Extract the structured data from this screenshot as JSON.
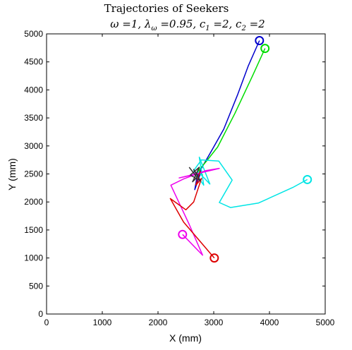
{
  "chart_data": {
    "type": "line",
    "title": "Trajectories of Seekers",
    "subtitle": "ω =1, λ_ω =0.95, c_1 =2, c_2 =2",
    "subtitle_parts": [
      "ω =1, λ",
      "ω",
      " =0.95, c",
      "1",
      " =2, c",
      "2",
      " =2"
    ],
    "xlabel": "X (mm)",
    "ylabel": "Y (mm)",
    "xlim": [
      0,
      5000
    ],
    "ylim": [
      0,
      5000
    ],
    "xticks": [
      "0",
      "1000",
      "2000",
      "3000",
      "4000",
      "5000"
    ],
    "xtick_values": [
      0,
      1000,
      2000,
      3000,
      4000,
      5000
    ],
    "yticks": [
      "0",
      "500",
      "1000",
      "1500",
      "2000",
      "2500",
      "3000",
      "3500",
      "4000",
      "4500",
      "5000"
    ],
    "ytick_values": [
      0,
      500,
      1000,
      1500,
      2000,
      2500,
      3000,
      3500,
      4000,
      4500,
      5000
    ],
    "grid": false,
    "legend": "none",
    "series": [
      {
        "color": "#0000cc",
        "start_marker": "circle",
        "x": [
          3820,
          3620,
          3430,
          3180,
          2960,
          2790,
          2700,
          2660,
          2780,
          2720
        ],
        "y": [
          4880,
          4430,
          3920,
          3300,
          2910,
          2620,
          2450,
          2220,
          2560,
          2500
        ]
      },
      {
        "color": "#00dd00",
        "start_marker": "circle",
        "x": [
          3920,
          3700,
          3380,
          3070,
          2880,
          2760,
          2700,
          2800,
          2740
        ],
        "y": [
          4740,
          4260,
          3580,
          2980,
          2740,
          2600,
          2520,
          2480,
          2560
        ]
      },
      {
        "color": "#00e5e5",
        "start_marker": "circle",
        "x": [
          4680,
          4420,
          3800,
          3300,
          3100,
          3330,
          3090,
          2780,
          2640,
          2820,
          2740,
          2930,
          2700
        ],
        "y": [
          2400,
          2260,
          1980,
          1900,
          1990,
          2390,
          2730,
          2750,
          2560,
          2300,
          2800,
          2320,
          2560
        ]
      },
      {
        "color": "#ee00ee",
        "start_marker": "circle",
        "x": [
          2440,
          2800,
          2560,
          2230,
          2460,
          2860,
          3100,
          2380,
          2700,
          2620
        ],
        "y": [
          1420,
          1050,
          1600,
          2300,
          2410,
          2560,
          2600,
          2430,
          2500,
          2520
        ]
      },
      {
        "color": "#dd0000",
        "start_marker": "circle",
        "x": [
          3010,
          2460,
          2220,
          2500,
          2640,
          2780,
          2680,
          2760
        ],
        "y": [
          1000,
          1640,
          2060,
          1860,
          2000,
          2420,
          2300,
          2560
        ]
      },
      {
        "color": "#333333",
        "start_marker": "none",
        "x": [
          2560,
          2700,
          2620,
          2740,
          2580,
          2760,
          2640,
          2720
        ],
        "y": [
          2620,
          2440,
          2360,
          2620,
          2480,
          2380,
          2580,
          2460
        ]
      }
    ]
  }
}
